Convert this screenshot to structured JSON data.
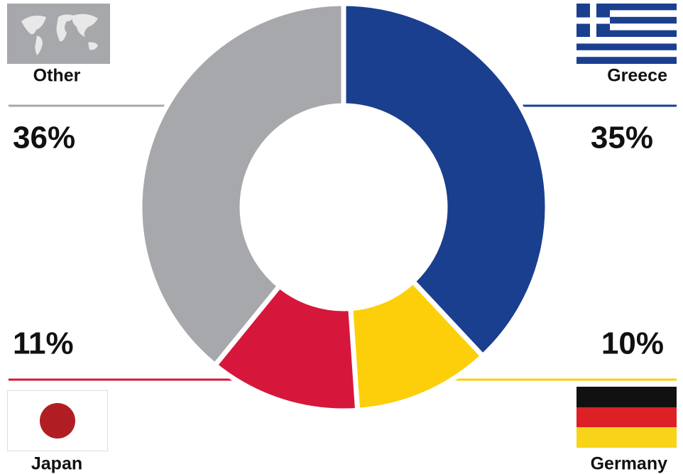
{
  "chart_data": {
    "type": "pie",
    "categories": [
      "Greece",
      "Germany",
      "Japan",
      "Other"
    ],
    "values": [
      35,
      10,
      11,
      36
    ],
    "value_labels": [
      "35%",
      "10%",
      "11%",
      "36%"
    ],
    "colors": [
      "#1a3f8f",
      "#fccf0a",
      "#d6173b",
      "#a7a8ab"
    ]
  }
}
